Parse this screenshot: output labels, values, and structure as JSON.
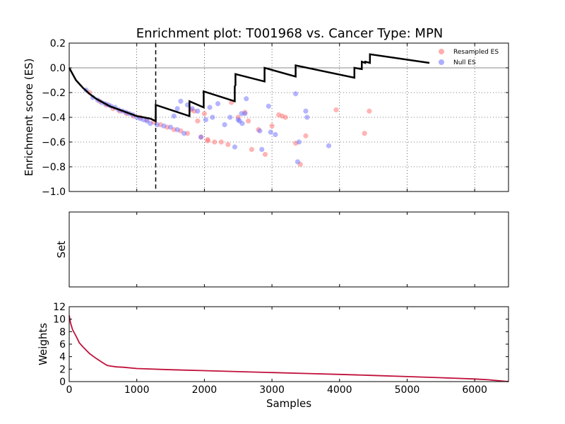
{
  "chart_data": [
    {
      "type": "line",
      "title": "Enrichment plot: T001968 vs. Cancer Type: MPN",
      "xlabel": "",
      "ylabel": "Enrichment score (ES)",
      "xlim": [
        0,
        6500
      ],
      "ylim": [
        -1.0,
        0.2
      ],
      "yticks": [
        0.2,
        0.0,
        -0.2,
        -0.4,
        -0.6,
        -0.8,
        -1.0
      ],
      "ytick_labels": [
        "0.2",
        "0.0",
        "−0.2",
        "−0.4",
        "−0.6",
        "−0.8",
        "−1.0"
      ],
      "xticks": [
        1000,
        2000,
        3000,
        4000,
        5000,
        6000
      ],
      "grid": true,
      "reference_line_y": 0.0,
      "vertical_marker_x": 1280,
      "legend_position": "top-right",
      "series": [
        {
          "name": "",
          "kind": "line",
          "color": "#000000",
          "x": [
            0,
            100,
            200,
            300,
            400,
            500,
            600,
            700,
            800,
            900,
            1000,
            1100,
            1200,
            1280,
            1280,
            1780,
            1780,
            1990,
            1990,
            2450,
            2450,
            2460,
            2460,
            2890,
            2890,
            3350,
            3350,
            4220,
            4220,
            4330,
            4330,
            4380,
            4380,
            4450,
            4450,
            5330
          ],
          "y": [
            0.0,
            -0.1,
            -0.16,
            -0.21,
            -0.25,
            -0.28,
            -0.31,
            -0.33,
            -0.35,
            -0.37,
            -0.39,
            -0.4,
            -0.41,
            -0.43,
            -0.3,
            -0.39,
            -0.27,
            -0.32,
            -0.19,
            -0.27,
            -0.15,
            -0.14,
            -0.05,
            -0.11,
            0.0,
            -0.07,
            0.02,
            -0.08,
            0.0,
            -0.01,
            0.05,
            0.04,
            0.05,
            0.04,
            0.11,
            0.04
          ]
        },
        {
          "name": "Resampled ES",
          "kind": "scatter",
          "color": "#ff6b6b",
          "x": [
            300,
            450,
            550,
            650,
            750,
            850,
            950,
            1050,
            1150,
            1250,
            1350,
            1450,
            1550,
            1650,
            1750,
            1800,
            1850,
            1900,
            1950,
            2050,
            2150,
            2250,
            2350,
            2400,
            2500,
            2600,
            2650,
            2700,
            2800,
            2900,
            3000,
            3100,
            3150,
            3200,
            3350,
            3420,
            3500,
            3950,
            4370,
            4440,
            2000,
            2050
          ],
          "y": [
            -0.2,
            -0.27,
            -0.3,
            -0.33,
            -0.35,
            -0.37,
            -0.39,
            -0.4,
            -0.42,
            -0.44,
            -0.46,
            -0.48,
            -0.5,
            -0.51,
            -0.53,
            -0.34,
            -0.35,
            -0.43,
            -0.56,
            -0.59,
            -0.6,
            -0.6,
            -0.62,
            -0.28,
            -0.4,
            -0.36,
            -0.43,
            -0.66,
            -0.5,
            -0.7,
            -0.47,
            -0.38,
            -0.39,
            -0.4,
            -0.61,
            -0.78,
            -0.55,
            -0.34,
            -0.53,
            -0.35,
            -0.37,
            -0.58
          ]
        },
        {
          "name": "Null ES",
          "kind": "scatter",
          "color": "#6b6bff",
          "x": [
            250,
            350,
            420,
            480,
            530,
            580,
            620,
            680,
            730,
            790,
            840,
            890,
            940,
            1000,
            1050,
            1100,
            1150,
            1200,
            1300,
            1400,
            1500,
            1600,
            1650,
            1700,
            1750,
            1820,
            1900,
            1950,
            2020,
            2080,
            2120,
            2200,
            2300,
            2380,
            2450,
            2520,
            2550,
            2600,
            2620,
            2820,
            2850,
            2950,
            2980,
            3050,
            3350,
            3380,
            3400,
            3500,
            3520,
            3840,
            1600,
            1550,
            2500,
            2560
          ],
          "y": [
            -0.18,
            -0.24,
            -0.26,
            -0.28,
            -0.29,
            -0.3,
            -0.31,
            -0.32,
            -0.34,
            -0.35,
            -0.36,
            -0.37,
            -0.38,
            -0.4,
            -0.41,
            -0.42,
            -0.43,
            -0.45,
            -0.46,
            -0.47,
            -0.48,
            -0.5,
            -0.27,
            -0.53,
            -0.3,
            -0.33,
            -0.35,
            -0.56,
            -0.42,
            -0.32,
            -0.4,
            -0.29,
            -0.46,
            -0.4,
            -0.64,
            -0.43,
            -0.37,
            -0.37,
            -0.25,
            -0.51,
            -0.66,
            -0.31,
            -0.52,
            -0.54,
            -0.21,
            -0.76,
            -0.6,
            -0.35,
            -0.4,
            -0.63,
            -0.33,
            -0.39,
            -0.42,
            -0.45
          ]
        }
      ]
    },
    {
      "type": "line",
      "title": "",
      "xlabel": "",
      "ylabel": "Set",
      "xlim": [
        0,
        6500
      ],
      "series": []
    },
    {
      "type": "line",
      "title": "",
      "xlabel": "Samples",
      "ylabel": "Weights",
      "xlim": [
        0,
        6500
      ],
      "ylim": [
        0,
        12
      ],
      "yticks": [
        0,
        2,
        4,
        6,
        8,
        10,
        12
      ],
      "xticks": [
        0,
        1000,
        2000,
        3000,
        4000,
        5000,
        6000
      ],
      "grid": false,
      "series": [
        {
          "name": "",
          "kind": "line",
          "color": "#c0103a",
          "x": [
            0,
            20,
            50,
            100,
            150,
            200,
            300,
            400,
            500,
            560,
            600,
            700,
            800,
            1000,
            1500,
            2000,
            2500,
            3000,
            3500,
            4000,
            4500,
            5000,
            5500,
            6000,
            6200,
            6400,
            6500
          ],
          "y": [
            10.6,
            9.4,
            8.3,
            7.3,
            6.2,
            5.6,
            4.5,
            3.7,
            3.0,
            2.6,
            2.5,
            2.35,
            2.3,
            2.1,
            1.9,
            1.75,
            1.6,
            1.45,
            1.3,
            1.15,
            0.98,
            0.8,
            0.62,
            0.42,
            0.3,
            0.1,
            0.0
          ]
        }
      ]
    }
  ]
}
